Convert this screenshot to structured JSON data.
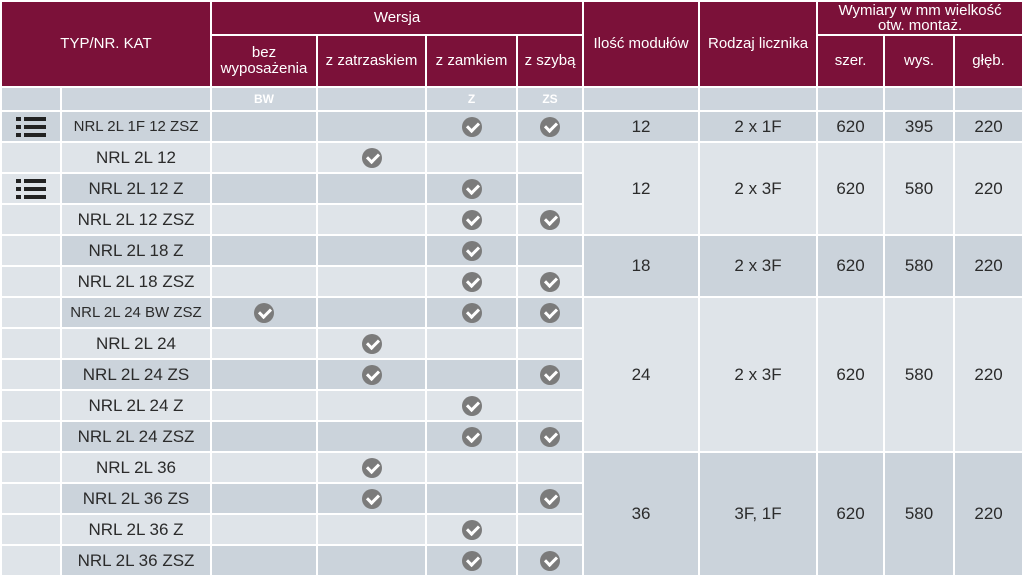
{
  "header": {
    "typ": "TYP/NR. KAT",
    "wersja": "Wersja",
    "bez": "bez wyposażenia",
    "zatrzask": "z zatrzaskiem",
    "zamek": "z zamkiem",
    "szyba": "z szybą",
    "ilosc": "Ilość modułów",
    "rodzaj": "Rodzaj licznika",
    "wymiary": "Wymiary w mm wielkość otw. montaż.",
    "szer": "szer.",
    "wys": "wys.",
    "gleb": "głęb."
  },
  "codes": {
    "bw": "BW",
    "z": "Z",
    "zs": "ZS"
  },
  "icons": {
    "list": "list-icon",
    "check": "check-circle-icon"
  },
  "colors": {
    "header_bg": "#7b1139",
    "row_light": "#dfe4e9",
    "row_dark": "#cbd3db",
    "check": "#7b7b7b"
  },
  "rows": [
    {
      "name": "NRL 2L 1F 12 ZSZ",
      "bw": false,
      "zat": false,
      "zam": true,
      "szy": true,
      "list_icon": true
    },
    {
      "name": "NRL 2L 12",
      "bw": false,
      "zat": true,
      "zam": false,
      "szy": false,
      "list_icon": false
    },
    {
      "name": "NRL 2L 12 Z",
      "bw": false,
      "zat": false,
      "zam": true,
      "szy": false,
      "list_icon": true
    },
    {
      "name": "NRL 2L 12 ZSZ",
      "bw": false,
      "zat": false,
      "zam": true,
      "szy": true,
      "list_icon": false
    },
    {
      "name": "NRL 2L 18 Z",
      "bw": false,
      "zat": false,
      "zam": true,
      "szy": false,
      "list_icon": false
    },
    {
      "name": "NRL 2L 18 ZSZ",
      "bw": false,
      "zat": false,
      "zam": true,
      "szy": true,
      "list_icon": false
    },
    {
      "name": "NRL 2L 24 BW ZSZ",
      "bw": true,
      "zat": false,
      "zam": true,
      "szy": true,
      "list_icon": false
    },
    {
      "name": "NRL 2L 24",
      "bw": false,
      "zat": true,
      "zam": false,
      "szy": false,
      "list_icon": false
    },
    {
      "name": "NRL 2L 24 ZS",
      "bw": false,
      "zat": true,
      "zam": false,
      "szy": true,
      "list_icon": false
    },
    {
      "name": "NRL 2L 24 Z",
      "bw": false,
      "zat": false,
      "zam": true,
      "szy": false,
      "list_icon": false
    },
    {
      "name": "NRL 2L 24 ZSZ",
      "bw": false,
      "zat": false,
      "zam": true,
      "szy": true,
      "list_icon": false
    },
    {
      "name": "NRL 2L 36",
      "bw": false,
      "zat": true,
      "zam": false,
      "szy": false,
      "list_icon": false
    },
    {
      "name": "NRL 2L 36 ZS",
      "bw": false,
      "zat": true,
      "zam": false,
      "szy": true,
      "list_icon": false
    },
    {
      "name": "NRL 2L 36 Z",
      "bw": false,
      "zat": false,
      "zam": true,
      "szy": false,
      "list_icon": false
    },
    {
      "name": "NRL 2L 36 ZSZ",
      "bw": false,
      "zat": false,
      "zam": true,
      "szy": true,
      "list_icon": false
    }
  ],
  "groups": [
    {
      "moduly": "12",
      "licznik": "2 x 1F",
      "szer": "620",
      "wys": "395",
      "gleb": "220"
    },
    {
      "moduly": "12",
      "licznik": "2 x 3F",
      "szer": "620",
      "wys": "580",
      "gleb": "220"
    },
    {
      "moduly": "18",
      "licznik": "2 x 3F",
      "szer": "620",
      "wys": "580",
      "gleb": "220"
    },
    {
      "moduly": "24",
      "licznik": "2 x 3F",
      "szer": "620",
      "wys": "580",
      "gleb": "220"
    },
    {
      "moduly": "36",
      "licznik": "3F, 1F",
      "szer": "620",
      "wys": "580",
      "gleb": "220"
    }
  ]
}
